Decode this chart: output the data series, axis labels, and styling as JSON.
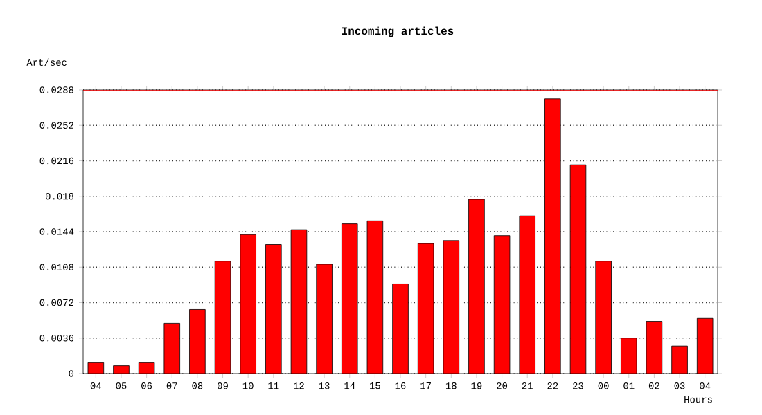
{
  "chart_data": {
    "type": "bar",
    "title": "Incoming articles",
    "xlabel": "Hours",
    "ylabel": "Art/sec",
    "categories": [
      "04",
      "05",
      "06",
      "07",
      "08",
      "09",
      "10",
      "11",
      "12",
      "13",
      "14",
      "15",
      "16",
      "17",
      "18",
      "19",
      "20",
      "21",
      "22",
      "23",
      "00",
      "01",
      "02",
      "03",
      "04"
    ],
    "values": [
      0.0011,
      0.0008,
      0.0011,
      0.0051,
      0.0065,
      0.0114,
      0.0141,
      0.0131,
      0.0146,
      0.0111,
      0.0152,
      0.0155,
      0.0091,
      0.0132,
      0.0135,
      0.0177,
      0.014,
      0.016,
      0.0279,
      0.0212,
      0.0114,
      0.0036,
      0.0053,
      0.0028,
      0.0056
    ],
    "color": "#ff0000",
    "ylim": [
      0,
      0.0288
    ],
    "yticks": [
      0,
      0.0036,
      0.0072,
      0.0108,
      0.0144,
      0.018,
      0.0216,
      0.0252,
      0.0288
    ],
    "grid": "y",
    "ref_lines": [
      {
        "axis": "y",
        "value": 0.0288,
        "color": "#ff0000"
      }
    ]
  }
}
